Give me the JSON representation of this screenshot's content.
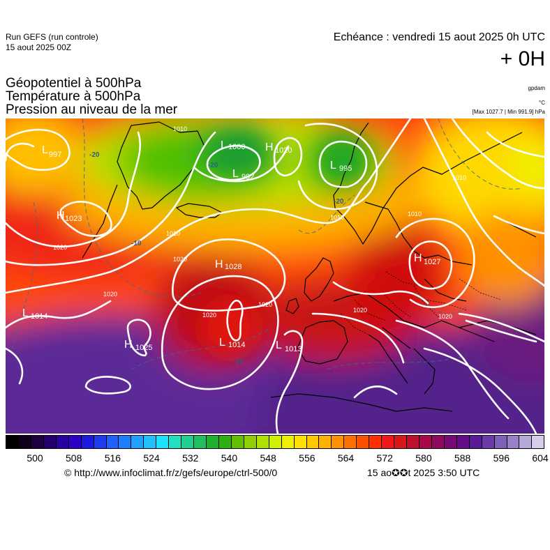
{
  "header": {
    "run_title": "Run GEFS (run controle)",
    "run_date": "15 aout 2025 00Z",
    "valid_label": "Echéance : vendredi 15 aout 2025 0h UTC",
    "lead_time": "+ 0H",
    "fields": [
      "Géopotentiel à 500hPa",
      "Température à 500hPa",
      "Pression au niveau de la mer"
    ],
    "unit_geopotential": "gpdam",
    "unit_temperature": "°C",
    "max_min": "[Max 1027.7 | Min 991.9] hPa"
  },
  "map": {
    "pressure_centers": [
      {
        "type": "L",
        "value": "997"
      },
      {
        "type": "H",
        "value": "1023"
      },
      {
        "type": "L",
        "value": "1000"
      },
      {
        "type": "L",
        "value": "992"
      },
      {
        "type": "H",
        "value": "1020"
      },
      {
        "type": "L",
        "value": "995"
      },
      {
        "type": "H",
        "value": "1028"
      },
      {
        "type": "H",
        "value": "1027"
      },
      {
        "type": "L",
        "value": "1014"
      },
      {
        "type": "H",
        "value": "1025"
      },
      {
        "type": "L",
        "value": "1014"
      },
      {
        "type": "L",
        "value": "1013"
      }
    ],
    "isobar_labels": [
      "1010",
      "1020",
      "1010",
      "1020",
      "1020",
      "1020",
      "1020",
      "1010",
      "1020",
      "1020",
      "1010",
      "1010"
    ],
    "isotherm_labels": [
      "-20",
      "-20",
      "-10",
      "-10",
      "-20"
    ]
  },
  "legend": {
    "colors": [
      "#000000",
      "#12001a",
      "#1d0040",
      "#22006e",
      "#2a00a0",
      "#2f00c8",
      "#1a1ae0",
      "#1e3cf0",
      "#2060ff",
      "#1a80ff",
      "#20a0ff",
      "#20c0ff",
      "#20e0ff",
      "#20e0c0",
      "#20d090",
      "#20c060",
      "#20b030",
      "#30b010",
      "#60c000",
      "#90d000",
      "#b0e000",
      "#d0f000",
      "#f0f000",
      "#ffe000",
      "#ffc800",
      "#ffb000",
      "#ff9000",
      "#ff7000",
      "#ff5000",
      "#ff3000",
      "#f01818",
      "#d81818",
      "#c01030",
      "#a80848",
      "#900860",
      "#780a78",
      "#640c88",
      "#5a1a98",
      "#6a3aa8",
      "#8060b8",
      "#9a80c8",
      "#b8a8d8",
      "#d8ccec"
    ],
    "labels": [
      "500",
      "508",
      "516",
      "524",
      "532",
      "540",
      "548",
      "556",
      "564",
      "572",
      "580",
      "588",
      "596",
      "604"
    ]
  },
  "footer": {
    "credit": "© http://www.infoclimat.fr/z/gefs/europe/ctrl-500/0",
    "timestamp": "15 ao✪✪t 2025  3:50 UTC"
  }
}
